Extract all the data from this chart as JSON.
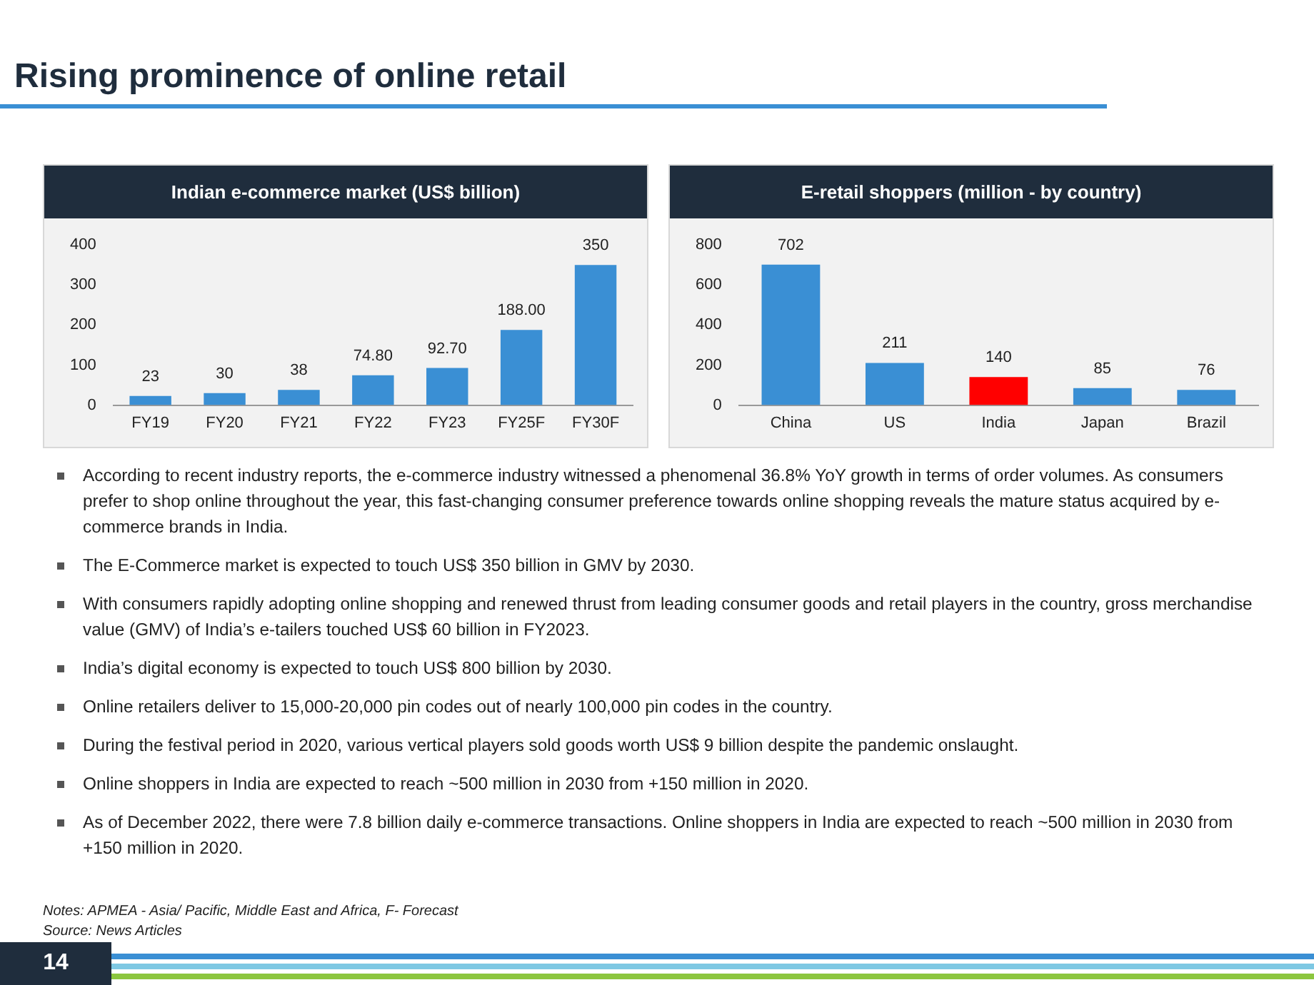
{
  "chart_data": [
    {
      "type": "bar",
      "title": "Indian e-commerce market (US$ billion)",
      "categories": [
        "FY19",
        "FY20",
        "FY21",
        "FY22",
        "FY23",
        "FY25F",
        "FY30F"
      ],
      "values": [
        23,
        30,
        38,
        74.8,
        92.7,
        188,
        350
      ],
      "value_labels": [
        "23",
        "30",
        "38",
        "74.80",
        "92.70",
        "188.00",
        "350"
      ],
      "color": "#3a8fd4",
      "ylim": [
        0,
        400
      ],
      "yticks": [
        0,
        100,
        200,
        300,
        400
      ],
      "grid": false,
      "legend": false
    },
    {
      "type": "bar",
      "title": "E-retail shoppers (million - by country)",
      "categories": [
        "China",
        "US",
        "India",
        "Japan",
        "Brazil"
      ],
      "values": [
        702,
        211,
        140,
        85,
        76
      ],
      "colors": [
        "#3a8fd4",
        "#3a8fd4",
        "#ff0000",
        "#3a8fd4",
        "#3a8fd4"
      ],
      "ylim": [
        0,
        800
      ],
      "yticks": [
        0,
        200,
        400,
        600,
        800
      ],
      "grid": false,
      "legend": false,
      "data_labels": true
    },
    {
      "type": "other",
      "title": "Rising prominence of online retail",
      "annotations": [
        "According to recent industry reports, the e-commerce industry witnessed a phenomenal 36.8% YoY growth in terms of order volumes. As consumers prefer to shop online throughout the year, this fast-changing consumer preference towards online shopping reveals the mature status acquired by e-commerce brands in India.",
        "The E-Commerce market is expected to touch US$ 350 billion in GMV by 2030.",
        "With consumers rapidly adopting online shopping and renewed thrust from leading consumer goods and retail players in the country, gross merchandise value (GMV) of India’s e-tailers touched US$ 60 billion in FY2023.",
        "India’s digital economy is expected to touch US$ 800 billion by 2030.",
        "Online retailers deliver to 15,000-20,000 pin codes out of nearly 100,000 pin codes in the country.",
        "During the festival period in 2020, various vertical players sold goods worth US$ 9 billion despite the pandemic onslaught.",
        "Online shoppers in India are expected to reach ~500 million in 2030 from +150 million in 2020.",
        "As of December 2022, there were 7.8 billion daily e-commerce transactions. Online shoppers in India are expected to reach ~500 million in 2030 from +150 million in 2020.",
        "Notes: APMEA - Asia/ Pacific, Middle East and Africa, F- Forecast",
        "Source: News Articles",
        "14"
      ]
    }
  ]
}
